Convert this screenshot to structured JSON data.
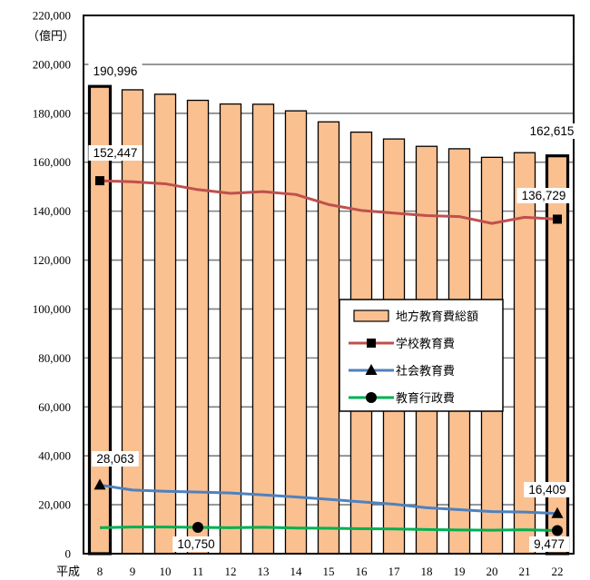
{
  "chart_data": {
    "type": "bar",
    "unit_label": "（億円）",
    "x_prefix": "平成",
    "categories": [
      "8",
      "9",
      "10",
      "11",
      "12",
      "13",
      "14",
      "15",
      "16",
      "17",
      "18",
      "19",
      "20",
      "21",
      "22"
    ],
    "ylim": [
      0,
      220000
    ],
    "yticks": [
      {
        "value": 0,
        "label": "0"
      },
      {
        "value": 20000,
        "label": "20,000"
      },
      {
        "value": 40000,
        "label": "40,000"
      },
      {
        "value": 60000,
        "label": "60,000"
      },
      {
        "value": 80000,
        "label": "80,000"
      },
      {
        "value": 100000,
        "label": "100,000"
      },
      {
        "value": 120000,
        "label": "120,000"
      },
      {
        "value": 140000,
        "label": "140,000"
      },
      {
        "value": 160000,
        "label": "160,000"
      },
      {
        "value": 180000,
        "label": "180,000"
      },
      {
        "value": 200000,
        "label": "200,000"
      },
      {
        "value": 220000,
        "label": "220,000"
      }
    ],
    "grid": true,
    "legend_position": "center-right",
    "series": [
      {
        "name": "地方教育費総額",
        "kind": "bar",
        "color": "#FAC090",
        "values": [
          190996,
          189600,
          187800,
          185300,
          183800,
          183700,
          181000,
          176500,
          172300,
          169500,
          166500,
          165500,
          162000,
          163900,
          162615
        ],
        "labels": [
          {
            "index": 0,
            "text": "190,996"
          },
          {
            "index": 14,
            "text": "162,615"
          }
        ]
      },
      {
        "name": "学校教育費",
        "kind": "line",
        "marker": "square",
        "color": "#C0504D",
        "values": [
          152447,
          152000,
          151200,
          148800,
          147300,
          148000,
          146800,
          142700,
          140300,
          139200,
          138200,
          137800,
          135000,
          137500,
          136729
        ],
        "labels": [
          {
            "index": 0,
            "text": "152,447"
          },
          {
            "index": 14,
            "text": "136,729"
          }
        ]
      },
      {
        "name": "社会教育費",
        "kind": "line",
        "marker": "triangle",
        "color": "#4F81BD",
        "values": [
          28063,
          26000,
          25500,
          25200,
          24800,
          24000,
          23200,
          22200,
          21200,
          20200,
          18800,
          18000,
          17200,
          17000,
          16409
        ],
        "labels": [
          {
            "index": 0,
            "text": "28,063"
          },
          {
            "index": 14,
            "text": "16,409"
          }
        ]
      },
      {
        "name": "教育行政費",
        "kind": "line",
        "marker": "circle",
        "color": "#00B050",
        "values": [
          10600,
          10900,
          10900,
          10750,
          10600,
          10800,
          10500,
          10400,
          10200,
          10100,
          9900,
          9700,
          9600,
          9800,
          9477
        ],
        "labels": [
          {
            "index": 3,
            "text": "10,750"
          },
          {
            "index": 14,
            "text": "9,477"
          }
        ]
      }
    ]
  }
}
